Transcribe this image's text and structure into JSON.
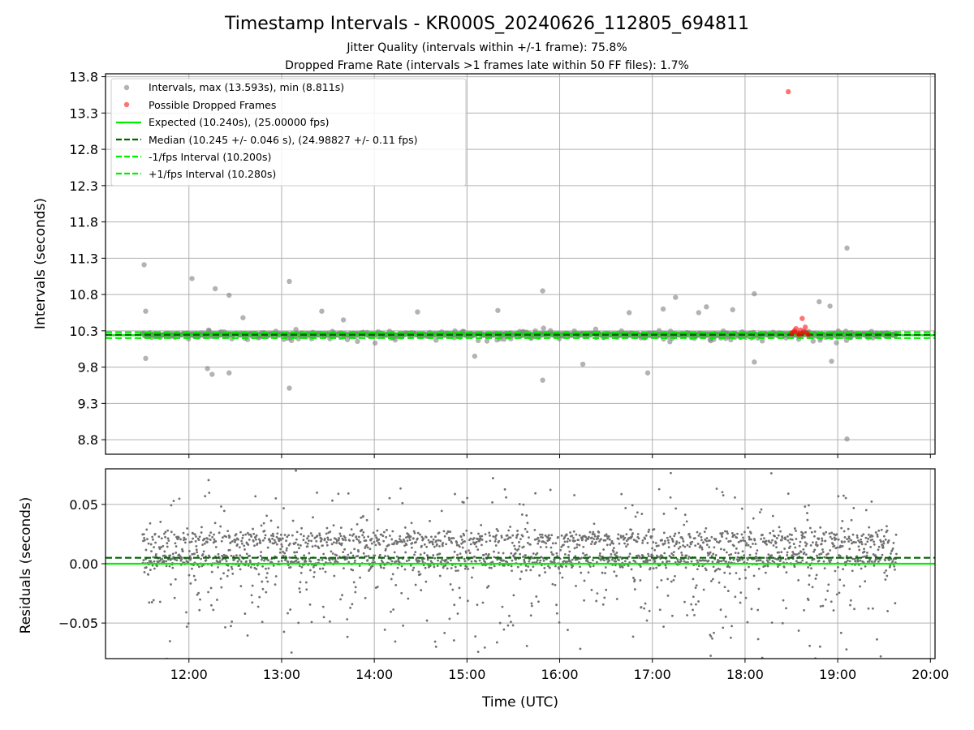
{
  "figure": {
    "title": "Timestamp Intervals - KR000S_20240626_112805_694811",
    "subtitle_1": "Jitter Quality (intervals within +/-1 frame): 75.8%",
    "subtitle_2": "Dropped Frame Rate (intervals >1 frames late within 50 FF files): 1.7%"
  },
  "colors": {
    "intervals": "#808080",
    "dropped": "#ff0000",
    "expected": "#00ee00",
    "median": "#006400",
    "fps_band": "#00ee00",
    "grid": "#b0b0b0"
  },
  "chart_data": [
    {
      "type": "scatter",
      "ylabel": "Intervals (seconds)",
      "xlim": [
        "11:06",
        "20:03"
      ],
      "ylim": [
        8.6,
        13.84
      ],
      "yticks": [
        "8.8",
        "9.3",
        "9.8",
        "10.3",
        "10.8",
        "11.3",
        "11.8",
        "12.3",
        "12.8",
        "13.3",
        "13.8"
      ],
      "grid": true,
      "legend_placement": "top-left",
      "legend": [
        "Intervals, max (13.593s), min (8.811s)",
        "Possible Dropped Frames",
        "Expected (10.240s), (25.00000 fps)",
        "Median (10.245 +/- 0.046 s), (24.98827 +/- 0.11 fps)",
        "-1/fps Interval (10.200s)",
        "+1/fps Interval (10.280s)"
      ],
      "expected": 10.24,
      "median": 10.245,
      "minus_interval": 10.2,
      "plus_interval": 10.28,
      "time_range": [
        "11:30",
        "19:38"
      ],
      "max_interval": 13.593,
      "min_interval": 8.811,
      "series": [
        {
          "name": "Intervals, max (13.593s), min (8.811s)",
          "outliers": [
            [
              "11:31",
              11.21
            ],
            [
              "11:32",
              10.57
            ],
            [
              "11:32",
              9.92
            ],
            [
              "12:02",
              11.02
            ],
            [
              "12:17",
              10.88
            ],
            [
              "12:15",
              9.7
            ],
            [
              "12:26",
              10.79
            ],
            [
              "12:26",
              9.72
            ],
            [
              "12:12",
              9.78
            ],
            [
              "13:05",
              10.98
            ],
            [
              "13:05",
              9.51
            ],
            [
              "13:26",
              10.57
            ],
            [
              "14:28",
              10.56
            ],
            [
              "15:20",
              10.58
            ],
            [
              "15:49",
              10.85
            ],
            [
              "15:49",
              9.62
            ],
            [
              "16:57",
              9.72
            ],
            [
              "17:07",
              10.6
            ],
            [
              "17:15",
              10.76
            ],
            [
              "17:35",
              10.63
            ],
            [
              "17:52",
              10.59
            ],
            [
              "18:06",
              10.81
            ],
            [
              "18:06",
              9.87
            ],
            [
              "18:48",
              10.7
            ],
            [
              "18:55",
              10.64
            ],
            [
              "19:06",
              11.44
            ],
            [
              "19:06",
              8.81
            ],
            [
              "18:56",
              9.88
            ],
            [
              "16:15",
              9.84
            ],
            [
              "16:45",
              10.55
            ],
            [
              "13:40",
              10.45
            ],
            [
              "12:35",
              10.48
            ],
            [
              "17:30",
              10.55
            ],
            [
              "15:05",
              9.95
            ]
          ]
        },
        {
          "name": "Possible Dropped Frames",
          "points": [
            [
              "18:28",
              13.593
            ],
            [
              "18:30",
              10.26
            ],
            [
              "18:31",
              10.28
            ],
            [
              "18:32",
              10.3
            ],
            [
              "18:33",
              10.33
            ],
            [
              "18:34",
              10.27
            ],
            [
              "18:35",
              10.25
            ],
            [
              "18:36",
              10.31
            ],
            [
              "18:37",
              10.26
            ],
            [
              "18:38",
              10.29
            ],
            [
              "18:39",
              10.35
            ],
            [
              "18:40",
              10.27
            ],
            [
              "18:41",
              10.25
            ],
            [
              "18:37",
              10.47
            ]
          ]
        }
      ]
    },
    {
      "type": "scatter",
      "xlabel": "Time (UTC)",
      "ylabel": "Residuals (seconds)",
      "xlim": [
        "11:06",
        "20:03"
      ],
      "ylim": [
        -0.08,
        0.08
      ],
      "yticks": [
        "−0.05",
        "0.00",
        "0.05"
      ],
      "xticks": [
        "12:00",
        "13:00",
        "14:00",
        "15:00",
        "16:00",
        "17:00",
        "18:00",
        "19:00",
        "20:00"
      ],
      "grid": true,
      "expected_residual": 0.0,
      "median_residual": 0.005
    }
  ]
}
